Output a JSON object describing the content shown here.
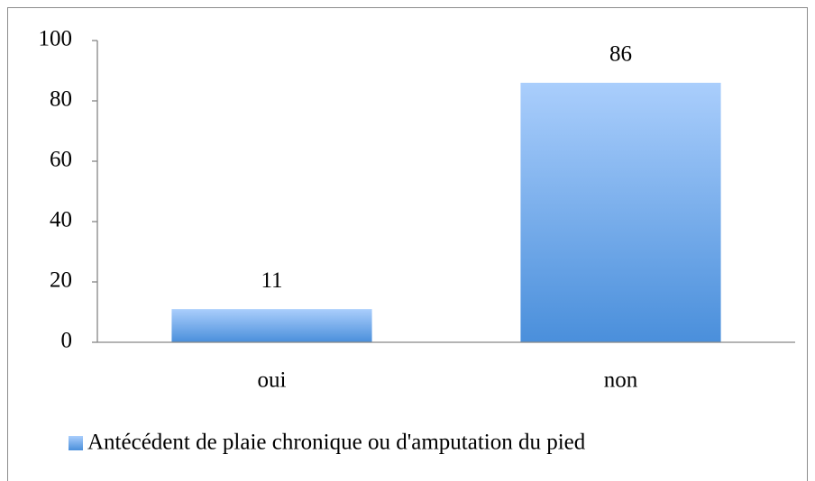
{
  "chart_data": {
    "type": "bar",
    "categories": [
      "oui",
      "non"
    ],
    "series": [
      {
        "name": "Antécédent de plaie chronique ou d'amputation du pied",
        "color": "#4a8fdb",
        "values": [
          11,
          86
        ]
      }
    ],
    "ylim": [
      0,
      100
    ],
    "yticks": [
      0,
      20,
      40,
      60,
      80,
      100
    ],
    "grid": false,
    "legend": "bottom",
    "data_labels": true
  }
}
